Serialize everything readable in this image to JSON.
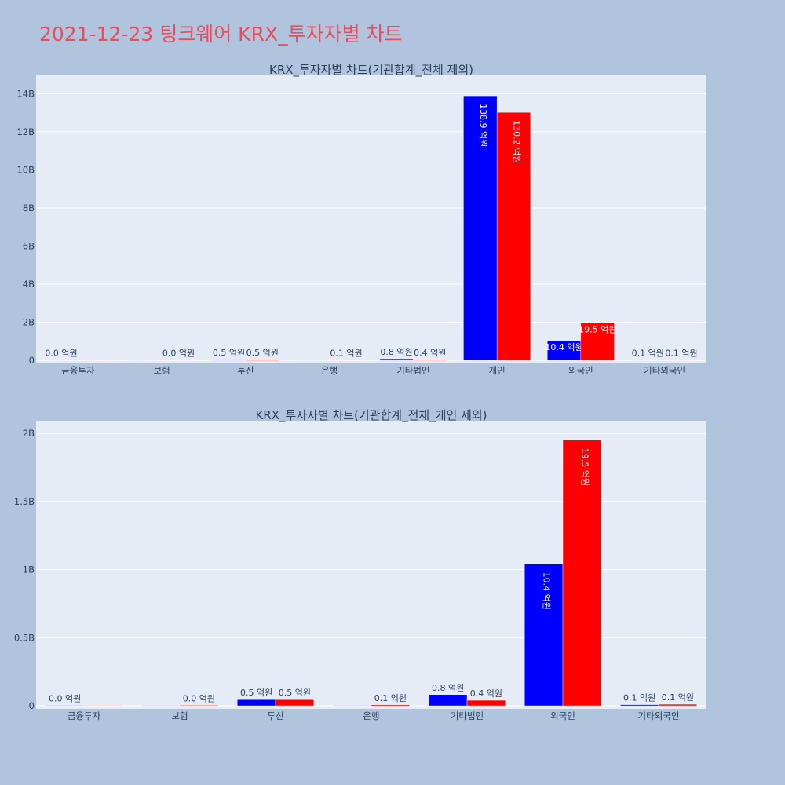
{
  "page_title": "2021-12-23 팅크웨어 KRX_투자자별 차트",
  "colors": {
    "buy": "#0000ff",
    "sell": "#ff0000",
    "plot_bg": "#e5ecf6",
    "page_bg": "#b0c4de",
    "title": "#ef4a5a"
  },
  "chart_data": [
    {
      "type": "bar",
      "title": "KRX_투자자별 차트(기관합계_전체 제외)",
      "categories": [
        "금융투자",
        "보험",
        "투신",
        "은행",
        "기타법인",
        "개인",
        "외국인",
        "기타외국인"
      ],
      "series": [
        {
          "values": [
            0.003,
            0.002,
            0.05,
            0.002,
            0.08,
            13.89,
            1.04,
            0.008
          ],
          "labels": [
            "0.0 억원",
            "",
            "0.5 억원",
            "",
            "0.8 억원",
            "138.9 억원",
            "10.4 억원",
            "0.1 억원"
          ]
        },
        {
          "values": [
            0.002,
            0.003,
            0.05,
            0.01,
            0.04,
            13.02,
            1.95,
            0.01
          ],
          "labels": [
            "",
            "0.0 억원",
            "0.5 억원",
            "0.1 억원",
            "0.4 억원",
            "130.2 억원",
            "19.5 억원",
            "0.1 억원"
          ]
        }
      ],
      "ylim": [
        0,
        14.8
      ],
      "yticks": [
        0,
        2,
        4,
        6,
        8,
        10,
        12,
        14
      ],
      "ytick_labels": [
        "0",
        "2B",
        "4B",
        "6B",
        "8B",
        "10B",
        "12B",
        "14B"
      ],
      "grid": true
    },
    {
      "type": "bar",
      "title": "KRX_투자자별 차트(기관합계_전체_개인 제외)",
      "categories": [
        "금융투자",
        "보험",
        "투신",
        "은행",
        "기타법인",
        "외국인",
        "기타외국인"
      ],
      "series": [
        {
          "values": [
            0.003,
            0.002,
            0.045,
            0.002,
            0.082,
            1.04,
            0.008
          ],
          "labels": [
            "0.0 억원",
            "",
            "0.5 억원",
            "",
            "0.8 억원",
            "10.4 억원",
            "0.1 억원"
          ]
        },
        {
          "values": [
            0.002,
            0.004,
            0.045,
            0.007,
            0.04,
            1.95,
            0.011
          ],
          "labels": [
            "",
            "0.0 억원",
            "0.5 억원",
            "0.1 억원",
            "0.4 억원",
            "19.5 억원",
            "0.1 억원"
          ]
        }
      ],
      "ylim": [
        0,
        2.07
      ],
      "yticks": [
        0,
        0.5,
        1,
        1.5,
        2
      ],
      "ytick_labels": [
        "0",
        "0.5B",
        "1B",
        "1.5B",
        "2B"
      ],
      "grid": true
    }
  ]
}
